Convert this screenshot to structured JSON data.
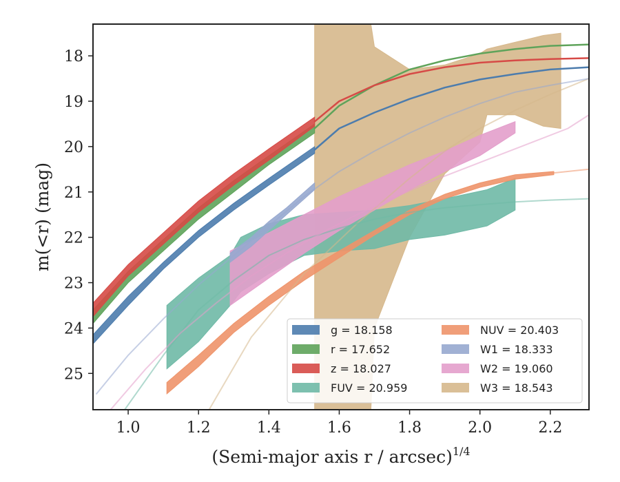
{
  "chart_data": {
    "type": "area",
    "title": "",
    "xlabel": "(Semi-major axis r / arcsec)",
    "xlabel_superscript": "1/4",
    "ylabel": "m(<r) (mag)",
    "xlim": [
      0.9,
      2.31
    ],
    "ylim": [
      25.8,
      17.3
    ],
    "y_inverted": true,
    "grid": false,
    "legend_position": "lower-right",
    "x_ticks": [
      1.0,
      1.2,
      1.4,
      1.6,
      1.8,
      2.0,
      2.2
    ],
    "x_tick_labels": [
      "1.0",
      "1.2",
      "1.4",
      "1.6",
      "1.8",
      "2.0",
      "2.2"
    ],
    "y_ticks": [
      18,
      19,
      20,
      21,
      22,
      23,
      24,
      25
    ],
    "y_tick_labels": [
      "18",
      "19",
      "20",
      "21",
      "22",
      "23",
      "24",
      "25"
    ],
    "series": [
      {
        "key": "W3",
        "legend": "W3 = 18.543",
        "color": "#d6b88c",
        "band_x": [
          1.53,
          1.6,
          1.69,
          1.7,
          1.8,
          1.9,
          2.0,
          2.02,
          2.1,
          2.18,
          2.23
        ],
        "band_upper": [
          17.3,
          17.3,
          17.3,
          17.8,
          18.3,
          18.2,
          17.95,
          17.85,
          17.7,
          17.55,
          17.5
        ],
        "band_lower": [
          25.8,
          25.8,
          25.8,
          24.0,
          22.0,
          20.6,
          19.9,
          19.3,
          19.3,
          19.55,
          19.6
        ],
        "model_x": [
          1.23,
          1.35,
          1.5,
          1.65,
          1.8,
          1.9,
          2.0,
          2.1,
          2.2,
          2.31
        ],
        "model_y": [
          25.8,
          24.2,
          22.8,
          21.7,
          20.7,
          20.1,
          19.6,
          19.2,
          18.85,
          18.5
        ]
      },
      {
        "key": "FUV",
        "legend": "FUV = 20.959",
        "color": "#6fb9a6",
        "band_x": [
          1.11,
          1.2,
          1.29,
          1.32,
          1.4,
          1.5,
          1.6,
          1.7,
          1.8,
          1.9,
          2.02,
          2.1
        ],
        "band_upper": [
          23.5,
          22.9,
          22.4,
          22.0,
          21.7,
          21.5,
          21.45,
          21.4,
          21.3,
          21.15,
          20.95,
          20.7
        ],
        "band_lower": [
          24.9,
          24.3,
          23.5,
          23.2,
          22.8,
          22.4,
          22.3,
          22.25,
          22.05,
          21.95,
          21.75,
          21.4
        ],
        "model_x": [
          0.99,
          1.1,
          1.2,
          1.3,
          1.4,
          1.5,
          1.6,
          1.7,
          1.8,
          1.9,
          2.0,
          2.1,
          2.2,
          2.31
        ],
        "model_y": [
          25.8,
          24.6,
          23.6,
          22.95,
          22.4,
          22.05,
          21.8,
          21.6,
          21.45,
          21.35,
          21.28,
          21.22,
          21.18,
          21.15
        ]
      },
      {
        "key": "NUV",
        "legend": "NUV = 20.403",
        "color": "#ee946a",
        "band_x": [
          1.11,
          1.2,
          1.3,
          1.4,
          1.5,
          1.6,
          1.7,
          1.8,
          1.9,
          2.0,
          2.1,
          2.21
        ],
        "band_upper": [
          25.2,
          24.6,
          23.9,
          23.3,
          22.75,
          22.3,
          21.85,
          21.4,
          21.05,
          20.8,
          20.62,
          20.55
        ],
        "band_lower": [
          25.45,
          24.85,
          24.1,
          23.5,
          22.95,
          22.45,
          21.95,
          21.5,
          21.15,
          20.9,
          20.72,
          20.62
        ],
        "model_x": [
          2.21,
          2.31
        ],
        "model_y": [
          20.58,
          20.5
        ]
      },
      {
        "key": "W2",
        "legend": "W2 = 19.060",
        "color": "#e39ecb",
        "band_x": [
          1.29,
          1.4,
          1.5,
          1.6,
          1.7,
          1.8,
          1.9,
          2.0,
          2.1
        ],
        "band_upper": [
          22.3,
          21.9,
          21.5,
          21.1,
          20.75,
          20.4,
          20.1,
          19.75,
          19.45
        ],
        "band_lower": [
          23.5,
          22.9,
          22.35,
          21.85,
          21.4,
          20.95,
          20.55,
          20.2,
          19.7
        ],
        "model_x": [
          0.95,
          1.05,
          1.15,
          1.25,
          1.35,
          1.45,
          1.55,
          1.65,
          1.75,
          1.85,
          1.95,
          2.05,
          2.15,
          2.25,
          2.31
        ],
        "model_y": [
          25.8,
          24.9,
          24.1,
          23.45,
          22.85,
          22.35,
          21.9,
          21.5,
          21.15,
          20.8,
          20.5,
          20.2,
          19.9,
          19.6,
          19.3
        ]
      },
      {
        "key": "W1",
        "legend": "W1 = 18.333",
        "color": "#97a8cf",
        "band_x": [
          1.29,
          1.35,
          1.4,
          1.45,
          1.53
        ],
        "band_upper": [
          22.35,
          22.0,
          21.65,
          21.35,
          20.8
        ],
        "band_lower": [
          22.55,
          22.2,
          21.85,
          21.5,
          20.95
        ],
        "model_x": [
          0.91,
          1.0,
          1.1,
          1.2,
          1.3,
          1.4,
          1.5,
          1.6,
          1.7,
          1.8,
          1.9,
          2.0,
          2.1,
          2.2,
          2.31
        ],
        "model_y": [
          25.45,
          24.6,
          23.8,
          23.05,
          22.4,
          21.75,
          21.1,
          20.55,
          20.1,
          19.7,
          19.35,
          19.05,
          18.8,
          18.65,
          18.5
        ]
      },
      {
        "key": "g",
        "legend": "g = 18.158",
        "color": "#4c7cad",
        "band_x": [
          0.9,
          1.0,
          1.1,
          1.2,
          1.3,
          1.4,
          1.53
        ],
        "band_upper": [
          24.15,
          23.3,
          22.55,
          21.85,
          21.25,
          20.7,
          20.0
        ],
        "band_lower": [
          24.35,
          23.5,
          22.7,
          22.0,
          21.4,
          20.85,
          20.15
        ],
        "model_x": [
          1.53,
          1.6,
          1.7,
          1.8,
          1.9,
          2.0,
          2.1,
          2.2,
          2.31
        ],
        "model_y": [
          20.07,
          19.6,
          19.25,
          18.95,
          18.7,
          18.52,
          18.4,
          18.3,
          18.25
        ]
      },
      {
        "key": "r",
        "legend": "r = 17.652",
        "color": "#5ea35a",
        "band_x": [
          0.9,
          1.0,
          1.1,
          1.2,
          1.3,
          1.4,
          1.53
        ],
        "band_upper": [
          23.6,
          22.75,
          22.05,
          21.35,
          20.75,
          20.2,
          19.5
        ],
        "band_lower": [
          23.9,
          23.0,
          22.3,
          21.6,
          21.0,
          20.4,
          19.7
        ],
        "model_x": [
          1.53,
          1.6,
          1.7,
          1.8,
          1.9,
          2.0,
          2.1,
          2.2,
          2.31
        ],
        "model_y": [
          19.6,
          19.1,
          18.65,
          18.3,
          18.1,
          17.95,
          17.85,
          17.78,
          17.75
        ]
      },
      {
        "key": "z",
        "legend": "z = 18.027",
        "color": "#d64a46",
        "band_x": [
          0.9,
          1.0,
          1.1,
          1.2,
          1.3,
          1.4,
          1.53
        ],
        "band_upper": [
          23.45,
          22.6,
          21.9,
          21.2,
          20.6,
          20.05,
          19.35
        ],
        "band_lower": [
          23.75,
          22.85,
          22.15,
          21.45,
          20.85,
          20.3,
          19.55
        ],
        "model_x": [
          1.53,
          1.6,
          1.7,
          1.8,
          1.9,
          2.0,
          2.1,
          2.2,
          2.31
        ],
        "model_y": [
          19.45,
          19.0,
          18.65,
          18.4,
          18.25,
          18.15,
          18.1,
          18.07,
          18.05
        ]
      }
    ],
    "legend_order": [
      [
        "g",
        "NUV"
      ],
      [
        "r",
        "W1"
      ],
      [
        "z",
        "W2"
      ],
      [
        "FUV",
        "W3"
      ]
    ]
  }
}
